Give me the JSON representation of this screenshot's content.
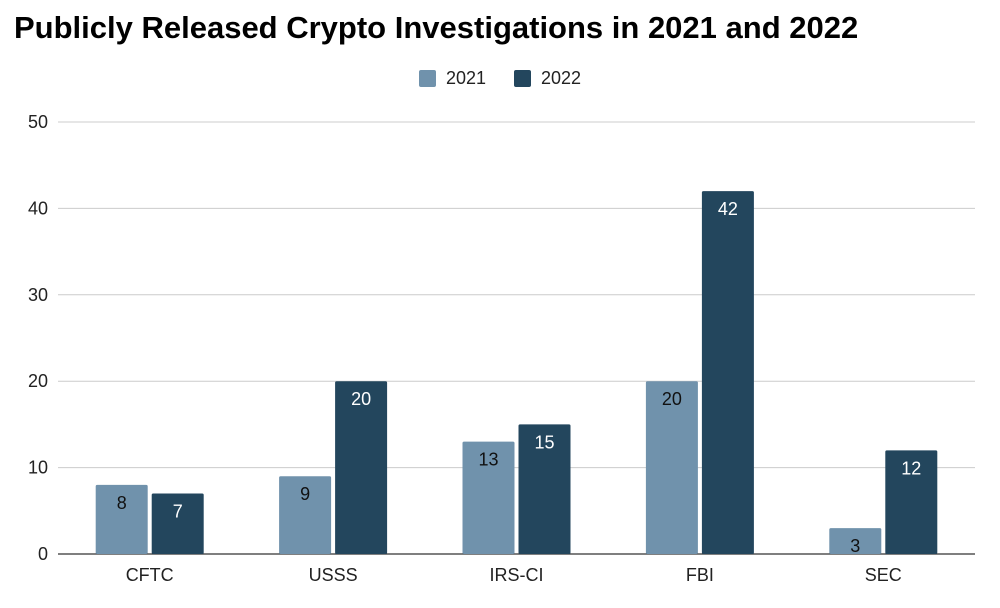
{
  "chart_data": {
    "type": "bar",
    "title": "Publicly Released Crypto Investigations in 2021 and 2022",
    "categories": [
      "CFTC",
      "USSS",
      "IRS-CI",
      "FBI",
      "SEC"
    ],
    "series": [
      {
        "name": "2021",
        "values": [
          8,
          9,
          13,
          20,
          3
        ],
        "color": "#7092AC",
        "label_color": "#111111"
      },
      {
        "name": "2022",
        "values": [
          7,
          20,
          15,
          42,
          12
        ],
        "color": "#23465D",
        "label_color": "#ffffff"
      }
    ],
    "ylim": [
      0,
      50
    ],
    "yticks": [
      0,
      10,
      20,
      30,
      40,
      50
    ],
    "grid": true,
    "legend_position": "top-center",
    "xlabel": "",
    "ylabel": ""
  }
}
